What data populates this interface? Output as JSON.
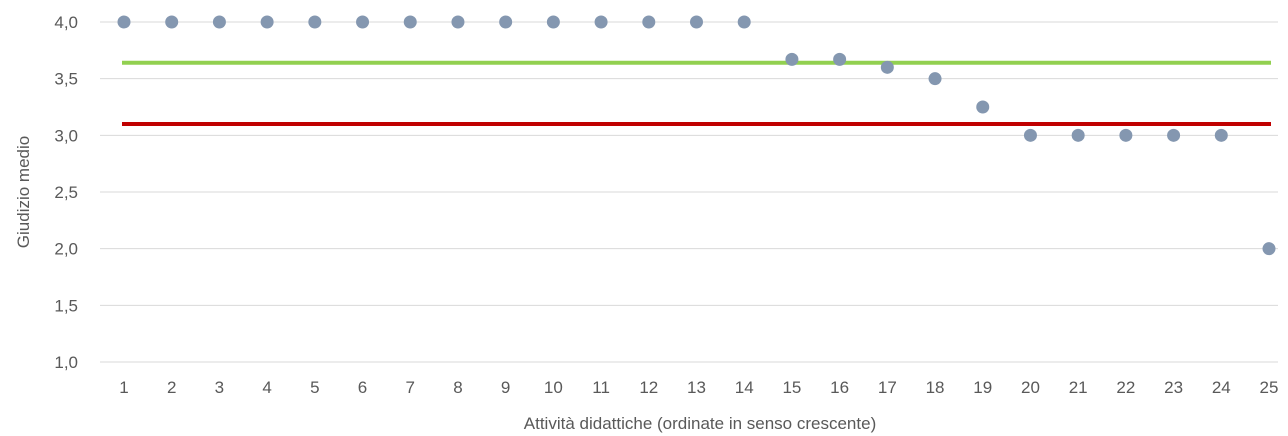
{
  "chart_data": {
    "type": "scatter",
    "xlabel": "Attività didattiche (ordinate in senso crescente)",
    "ylabel": "Giudizio medio",
    "ylim": [
      1.0,
      4.0
    ],
    "xlim": [
      1,
      25
    ],
    "yticks": [
      "1,0",
      "1,5",
      "2,0",
      "2,5",
      "3,0",
      "3,5",
      "4,0"
    ],
    "ytick_values": [
      1.0,
      1.5,
      2.0,
      2.5,
      3.0,
      3.5,
      4.0
    ],
    "xticks": [
      "1",
      "2",
      "3",
      "4",
      "5",
      "6",
      "7",
      "8",
      "9",
      "10",
      "11",
      "12",
      "13",
      "14",
      "15",
      "16",
      "17",
      "18",
      "19",
      "20",
      "21",
      "22",
      "23",
      "24",
      "25"
    ],
    "grid": true,
    "series": [
      {
        "type": "scatter",
        "color": "#8497b0",
        "x": [
          1,
          2,
          3,
          4,
          5,
          6,
          7,
          8,
          9,
          10,
          11,
          12,
          13,
          14,
          15,
          16,
          17,
          18,
          19,
          20,
          21,
          22,
          23,
          24,
          25
        ],
        "y": [
          4.0,
          4.0,
          4.0,
          4.0,
          4.0,
          4.0,
          4.0,
          4.0,
          4.0,
          4.0,
          4.0,
          4.0,
          4.0,
          4.0,
          3.67,
          3.67,
          3.6,
          3.5,
          3.25,
          3.0,
          3.0,
          3.0,
          3.0,
          3.0,
          2.0
        ]
      },
      {
        "type": "line",
        "color": "#92d050",
        "value": 3.64
      },
      {
        "type": "line",
        "color": "#c00000",
        "value": 3.1
      }
    ]
  }
}
